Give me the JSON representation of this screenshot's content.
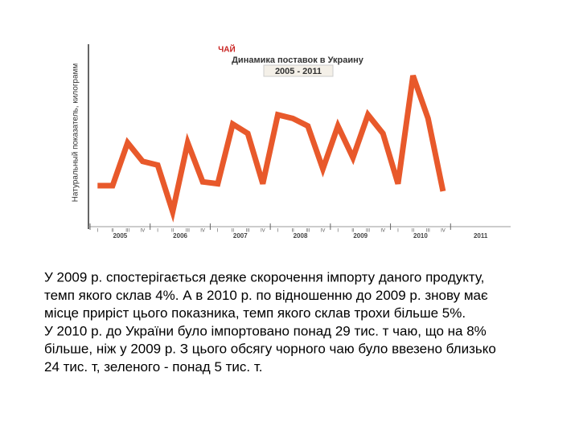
{
  "chart_data": {
    "type": "line",
    "title": "ЧАЙ",
    "subtitle": "Динамика поставок в Украину",
    "period": "2005 - 2011",
    "ylabel": "Натуральный показатель, килограмм",
    "categories": [
      "I",
      "II",
      "III",
      "IV",
      "I",
      "II",
      "III",
      "IV",
      "I",
      "II",
      "III",
      "IV",
      "I",
      "II",
      "III",
      "IV",
      "I",
      "II",
      "III",
      "IV",
      "I",
      "II",
      "III",
      "IV"
    ],
    "year_labels": [
      "2005",
      "2006",
      "2007",
      "2008",
      "2009",
      "2010",
      "2011"
    ],
    "series": [
      {
        "color": "#e8592b",
        "values": [
          22,
          22,
          45,
          35,
          33,
          8,
          45,
          24,
          23,
          55,
          50,
          23,
          60,
          58,
          54,
          31,
          54,
          37,
          60,
          50,
          23,
          81,
          58,
          19
        ]
      }
    ],
    "ylim": [
      0,
      100
    ]
  },
  "text": [
    "У 2009 р. спостерігається деяке скорочення імпорту даного продукту,",
    "темп якого склав 4%. А в 2010 р. по відношенню до 2009 р. знову має",
    "місце приріст цього показника, темп якого склав трохи більше 5%.",
    "У 2010 р. до України було імпортовано понад 29 тис. т чаю, що на 8%",
    "більше, ніж у 2009 р. З цього обсягу чорного чаю було ввезено близько",
    "24 тис. т, зеленого - понад 5 тис. т."
  ]
}
